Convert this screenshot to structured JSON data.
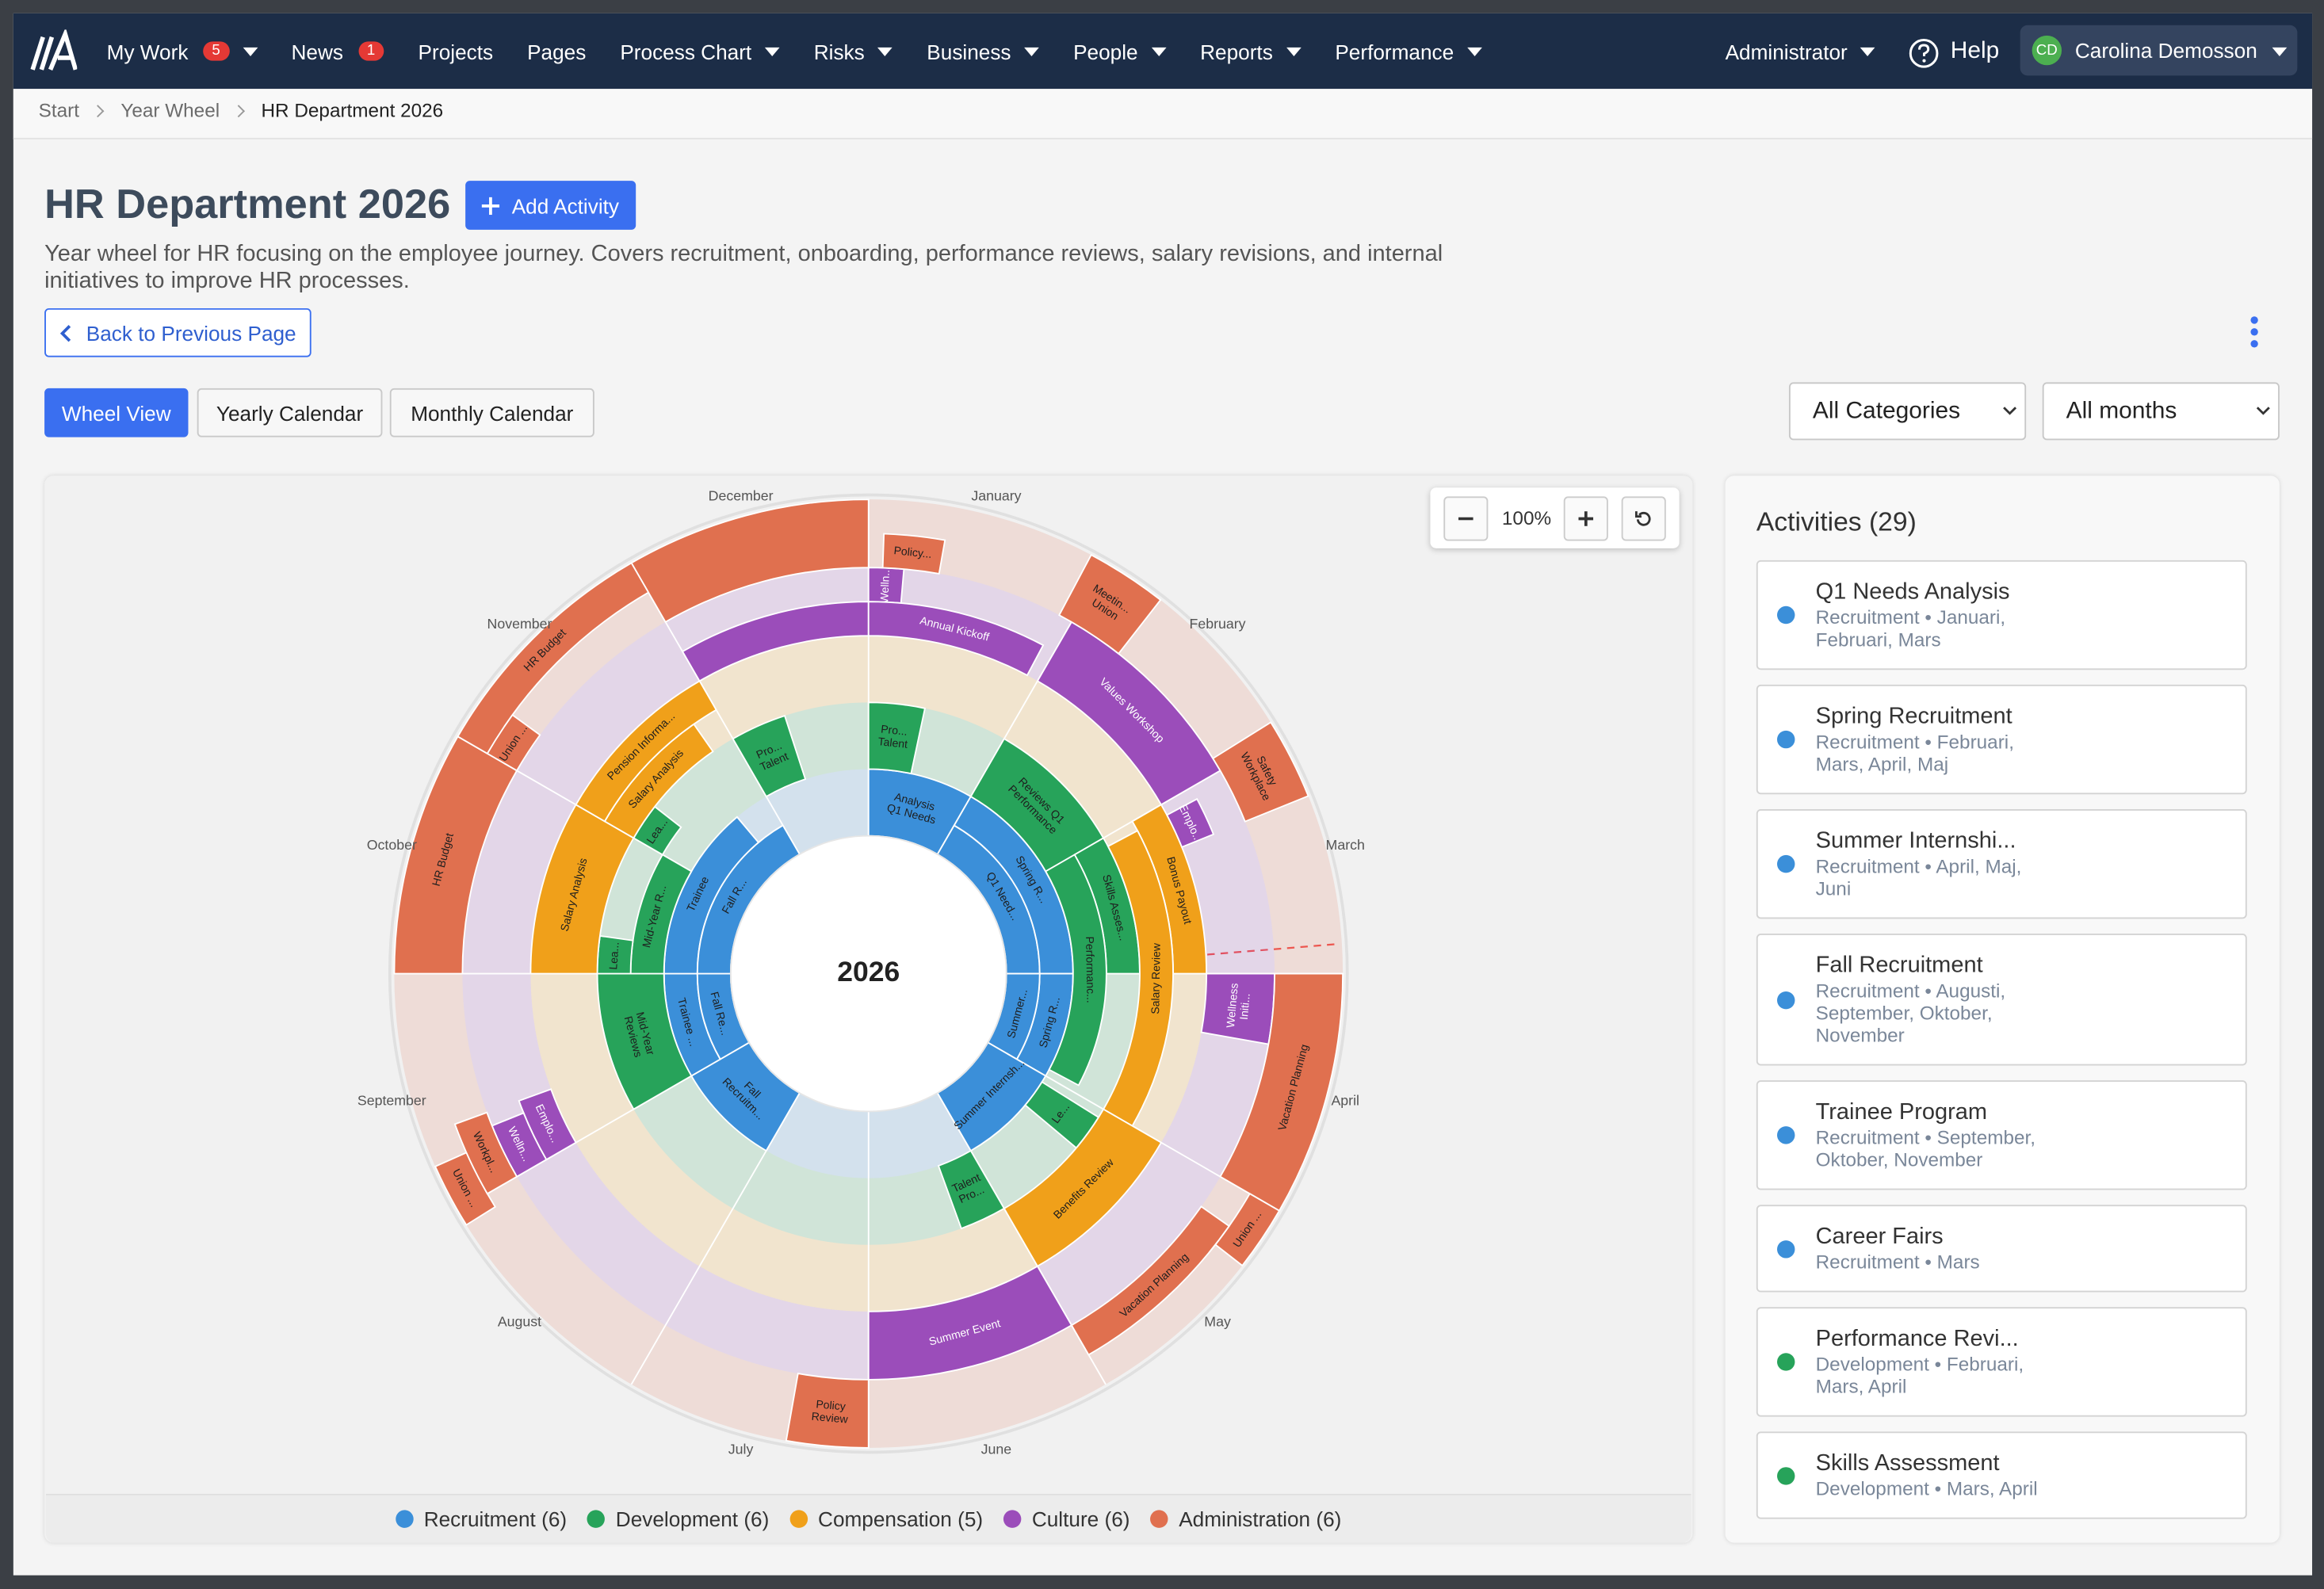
{
  "nav": {
    "items": [
      {
        "label": "My Work",
        "badge": "5",
        "dropdown": true
      },
      {
        "label": "News",
        "badge": "1"
      },
      {
        "label": "Projects"
      },
      {
        "label": "Pages"
      },
      {
        "label": "Process Chart",
        "dropdown": true
      },
      {
        "label": "Risks",
        "dropdown": true
      },
      {
        "label": "Business",
        "dropdown": true
      },
      {
        "label": "People",
        "dropdown": true
      },
      {
        "label": "Reports",
        "dropdown": true
      },
      {
        "label": "Performance",
        "dropdown": true
      }
    ],
    "admin": "Administrator",
    "help": "Help",
    "user_initials": "CD",
    "user_name": "Carolina Demosson"
  },
  "breadcrumb": [
    "Start",
    "Year Wheel",
    "HR Department 2026"
  ],
  "header": {
    "title": "HR Department 2026",
    "add_button": "Add Activity",
    "description": "Year wheel for HR focusing on the employee journey. Covers recruitment, onboarding, performance reviews, salary revisions, and internal initiatives to improve HR processes.",
    "back_button": "Back to Previous Page"
  },
  "tabs": [
    "Wheel View",
    "Yearly Calendar",
    "Monthly Calendar"
  ],
  "filters": [
    "All Categories",
    "All months"
  ],
  "wheel": {
    "year": "2026",
    "zoom": "100%",
    "months": [
      "January",
      "February",
      "March",
      "April",
      "May",
      "June",
      "July",
      "August",
      "September",
      "October",
      "November",
      "December"
    ],
    "categories": [
      {
        "label": "Recruitment (6)",
        "color": "#3b8fd9",
        "segments": [
          [
            "Analysis",
            "Q1 Needs"
          ],
          [
            "Q1 Need..."
          ],
          [
            "Spring R..."
          ],
          [
            "Spring R..."
          ],
          [
            "Summer..."
          ],
          [
            "Summer Internsh..."
          ],
          [
            "Fall",
            "Recruitm..."
          ],
          [
            "Trainee ..."
          ],
          [
            "Fall Re..."
          ],
          [
            "Trainee"
          ],
          [
            "Fall R..."
          ]
        ]
      },
      {
        "label": "Development (6)",
        "color": "#27a35a",
        "segments": [
          [
            "Pro...",
            "Talent"
          ],
          [
            "Reviews Q1",
            "Performance"
          ],
          [
            "Skills Asses..."
          ],
          [
            "Performanc..."
          ],
          [
            "Le..."
          ],
          [
            "Talent",
            "Pro..."
          ],
          [
            "Mid-Year",
            "Reviews"
          ],
          [
            "Mid-Year R..."
          ],
          [
            "Lea..."
          ],
          [
            "Lea..."
          ],
          [
            "Pro...",
            "Talent"
          ]
        ]
      },
      {
        "label": "Compensation (5)",
        "color": "#f0a01a",
        "segments": [
          [
            "Bonus Payout"
          ],
          [
            "Salary Review"
          ],
          [
            "Benefits Review"
          ],
          [
            "Salary Analysis"
          ],
          [
            "Pension Informa..."
          ],
          [
            "Salary Analysis"
          ]
        ]
      },
      {
        "label": "Culture (6)",
        "color": "#9b4dba",
        "segments": [
          [
            "Welln..."
          ],
          [
            "Annual Kickoff"
          ],
          [
            "Values Workshop"
          ],
          [
            "Emplo..."
          ],
          [
            "Wellness",
            "Initi..."
          ],
          [
            "Summer Event"
          ],
          [
            "Emplo..."
          ],
          [
            "Welln..."
          ]
        ]
      },
      {
        "label": "Administration (6)",
        "color": "#e0704f",
        "segments": [
          [
            "Policy..."
          ],
          [
            "Meetin...",
            "Union"
          ],
          [
            "Safety",
            "Workplace"
          ],
          [
            "Vacation Planning"
          ],
          [
            "Union ..."
          ],
          [
            "Vacation Planning"
          ],
          [
            "Policy",
            "Review"
          ],
          [
            "Union ..."
          ],
          [
            "Workpl..."
          ],
          [
            "HR Budget"
          ],
          [
            "Union ..."
          ],
          [
            "HR Budget"
          ]
        ]
      }
    ]
  },
  "activities": {
    "title": "Activities (29)",
    "items": [
      {
        "name": "Q1 Needs Analysis",
        "detail": "Recruitment • Januari, Februari, Mars",
        "color": "#3b8fd9"
      },
      {
        "name": "Spring Recruitment",
        "detail": "Recruitment • Februari, Mars, April, Maj",
        "color": "#3b8fd9"
      },
      {
        "name": "Summer Internshi...",
        "detail": "Recruitment • April, Maj, Juni",
        "color": "#3b8fd9"
      },
      {
        "name": "Fall Recruitment",
        "detail": "Recruitment • Augusti, September, Oktober, November",
        "color": "#3b8fd9"
      },
      {
        "name": "Trainee Program",
        "detail": "Recruitment • September, Oktober, November",
        "color": "#3b8fd9"
      },
      {
        "name": "Career Fairs",
        "detail": "Recruitment • Mars",
        "color": "#3b8fd9"
      },
      {
        "name": "Performance Revi...",
        "detail": "Development • Februari, Mars, April",
        "color": "#27a35a"
      },
      {
        "name": "Skills Assessment",
        "detail": "Development • Mars, April",
        "color": "#27a35a"
      }
    ]
  }
}
